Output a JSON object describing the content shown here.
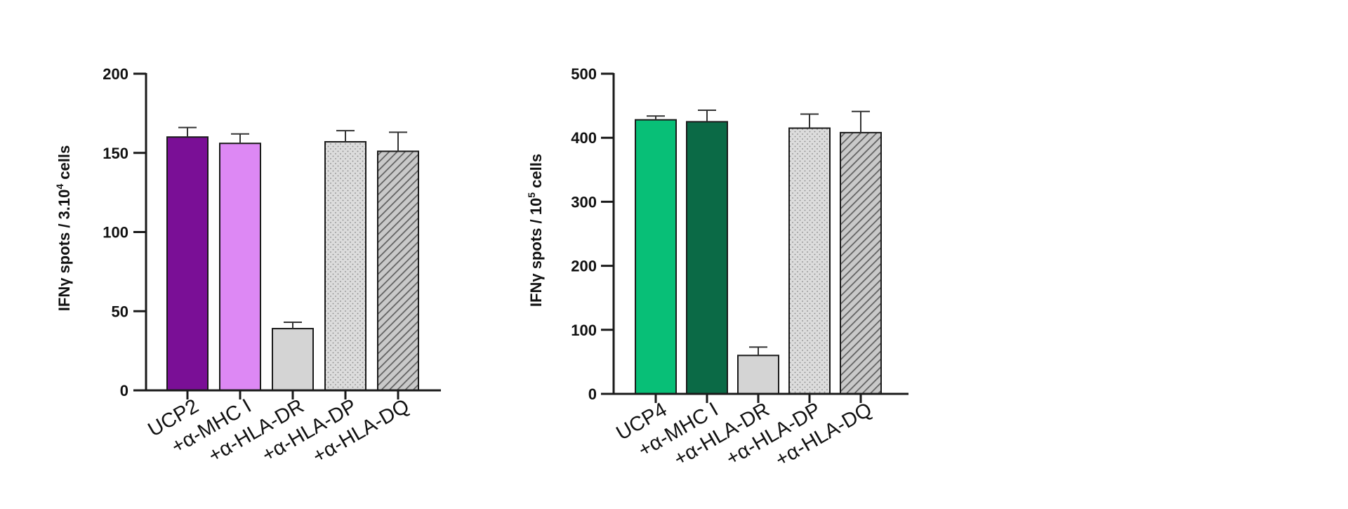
{
  "chart_data": [
    {
      "type": "bar",
      "panel": "left",
      "ylabel": {
        "prefix": "IFNγ spots / 3.10",
        "sup": "4",
        "suffix": " cells"
      },
      "ylim": [
        0,
        200
      ],
      "yticks": [
        0,
        50,
        100,
        150,
        200
      ],
      "categories": [
        "UCP2",
        "+α-MHC I",
        "+α-HLA-DR",
        "+α-HLA-DP",
        "+α-HLA-DQ"
      ],
      "values": [
        160,
        156,
        39,
        157,
        151
      ],
      "errors": [
        6,
        6,
        4,
        7,
        12
      ],
      "fills": [
        "solid",
        "solid",
        "solid",
        "dots",
        "hatch"
      ],
      "colors": [
        "#7a0f96",
        "#dd88f4",
        "#d4d4d4",
        "#dcdcdc",
        "#bdbdbd"
      ],
      "grid": false,
      "legend": "none"
    },
    {
      "type": "bar",
      "panel": "right",
      "ylabel": {
        "prefix": "IFNγ spots / 10",
        "sup": "5",
        "suffix": " cells"
      },
      "ylim": [
        0,
        500
      ],
      "yticks": [
        0,
        100,
        200,
        300,
        400,
        500
      ],
      "categories": [
        "UCP4",
        "+α-MHC I",
        "+α-HLA-DR",
        "+α-HLA-DP",
        "+α-HLA-DQ"
      ],
      "values": [
        428,
        425,
        60,
        415,
        408
      ],
      "errors": [
        6,
        18,
        13,
        22,
        33
      ],
      "fills": [
        "solid",
        "solid",
        "solid",
        "dots",
        "hatch"
      ],
      "colors": [
        "#08bf77",
        "#0b6a46",
        "#d4d4d4",
        "#dcdcdc",
        "#bdbdbd"
      ],
      "grid": false,
      "legend": "none"
    }
  ]
}
